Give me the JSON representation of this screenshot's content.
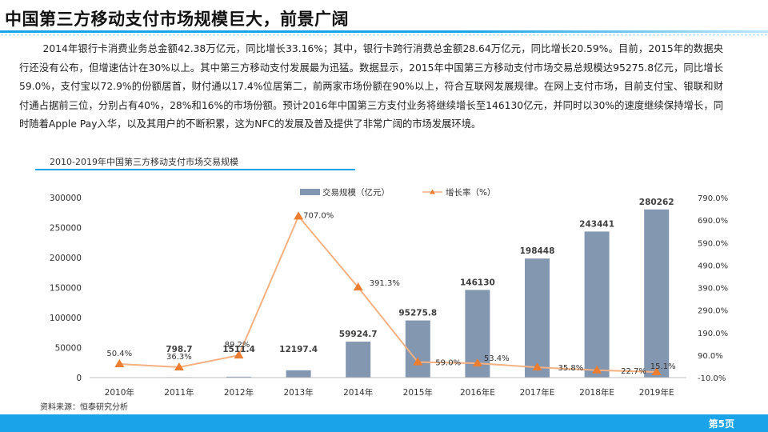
{
  "header": {
    "title": "中国第三方移动支付市场规模巨大，前景广阔"
  },
  "paragraph": "2014年银行卡消费业务总金额42.38万亿元，同比增长33.16%；其中，银行卡跨行消费总金额28.64万亿元，同比增长20.59%。目前，2015年的数据央行还没有公布，但增速估计在30%以上。其中第三方移动支付发展最为迅猛。数据显示，2015年中国第三方移动支付市场交易总规模达95275.8亿元，同比增长59.0%，支付宝以72.9%的份额居首，财付通以17.4%位居第二，前两家市场份额在90%以上，符合互联网发展规律。在网上支付市场，目前支付宝、银联和财付通占据前三位，分别占有40%，28%和16%的市场份额。预计2016年中国第三方支付业务将继续增长至146130亿元，并同时以30%的速度继续保持增长，同时随着Apple  Pay入华，以及其用户的不断积累，这为NFC的发展及普及提供了非常广阔的市场发展环境。",
  "source": "资料来源：恒泰研究分析",
  "page_number": "第5页",
  "colors": {
    "bar": "#8497b0",
    "line": "#f4b183",
    "marker": "#ed7d31",
    "accent": "#1aa3e8"
  },
  "chart_data": {
    "type": "bar",
    "title": "2010-2019年中国第三方移动支付市场交易规模",
    "categories": [
      "2010年",
      "2011年",
      "2012年",
      "2013年",
      "2014年",
      "2015年",
      "2016年E",
      "2017年E",
      "2018年E",
      "2019年E"
    ],
    "series": [
      {
        "name": "交易规模（亿元）",
        "type": "bar",
        "axis": "left",
        "values": [
          0,
          798.7,
          1511.4,
          12197.4,
          59924.7,
          95275.8,
          146130,
          198448,
          243441,
          280262
        ],
        "labels": [
          "",
          "798.7",
          "1511.4",
          "12197.4",
          "59924.7",
          "95275.8",
          "146130",
          "198448",
          "243441",
          "280262"
        ]
      },
      {
        "name": "增长率（%）",
        "type": "line",
        "axis": "right",
        "values": [
          50.4,
          36.3,
          89.2,
          707.0,
          391.3,
          59.0,
          53.4,
          35.8,
          22.7,
          15.1
        ],
        "labels": [
          "50.4%",
          "36.3%",
          "89.2%",
          "707.0%",
          "391.3%",
          "59.0%",
          "53.4%",
          "35.8%",
          "22.7%",
          "15.1%"
        ]
      }
    ],
    "left_axis": {
      "ylim": [
        0,
        300000
      ],
      "ticks": [
        "0",
        "50000",
        "100000",
        "150000",
        "200000",
        "250000",
        "300000"
      ]
    },
    "right_axis": {
      "ylim": [
        -10,
        790
      ],
      "ticks": [
        "-10.0%",
        "90.0%",
        "190.0%",
        "290.0%",
        "390.0%",
        "490.0%",
        "590.0%",
        "690.0%",
        "790.0%"
      ]
    },
    "legend_position": "top-center",
    "grid": false
  }
}
